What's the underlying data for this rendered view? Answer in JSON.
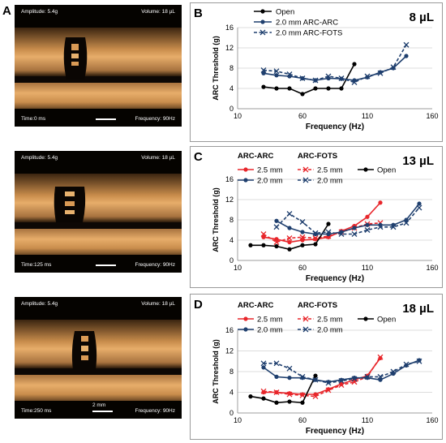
{
  "panel_a": {
    "letter": "A",
    "frames": [
      {
        "amplitude": "Amplitude: 5.4g",
        "volume": "Volume: 18 µL",
        "time": "Time:0    ms",
        "frequency": "Frequency: 90Hz",
        "scale_label": ""
      },
      {
        "amplitude": "Amplitude: 5.4g",
        "volume": "Volume: 18 µL",
        "time": "Time:125  ms",
        "frequency": "Frequency: 90Hz",
        "scale_label": ""
      },
      {
        "amplitude": "Amplitude: 5.4g",
        "volume": "Volume: 18 µL",
        "time": "Time:250  ms",
        "frequency": "Frequency: 90Hz",
        "scale_label": "2 mm"
      }
    ]
  },
  "colors": {
    "open": "#000000",
    "arc_2mm": "#1f3f6e",
    "arc_25mm": "#e8262b",
    "grid": "#d0d0d0"
  },
  "chart_data": [
    {
      "letter": "B",
      "type": "line",
      "title": "8 µL",
      "xlabel": "Frequency (Hz)",
      "ylabel": "ARC Threshold (g)",
      "xlim": [
        10,
        160
      ],
      "ylim": [
        0,
        16
      ],
      "xticks": [
        10,
        60,
        110,
        160
      ],
      "yticks": [
        0,
        4,
        8,
        12,
        16
      ],
      "legend": {
        "entries": [
          "Open",
          "2.0 mm ARC-ARC",
          "2.0 mm ARC-FOTS"
        ],
        "group_headers": []
      },
      "series": [
        {
          "name": "Open",
          "color": "#000000",
          "dash": false,
          "marker": "circle",
          "x": [
            30,
            40,
            50,
            60,
            70,
            80,
            90,
            100
          ],
          "y": [
            4.3,
            4.0,
            4.0,
            2.9,
            4.0,
            4.0,
            4.0,
            8.8
          ]
        },
        {
          "name": "2.0 mm ARC-ARC",
          "color": "#1f3f6e",
          "dash": false,
          "marker": "circle",
          "x": [
            30,
            40,
            50,
            60,
            70,
            80,
            90,
            100,
            110,
            120,
            130,
            140
          ],
          "y": [
            7.0,
            6.6,
            6.4,
            6.0,
            5.6,
            6.0,
            5.9,
            5.6,
            6.2,
            7.2,
            8.0,
            10.4
          ]
        },
        {
          "name": "2.0 mm ARC-FOTS",
          "color": "#1f3f6e",
          "dash": true,
          "marker": "x",
          "x": [
            30,
            40,
            50,
            60,
            70,
            80,
            90,
            100,
            110,
            120,
            130,
            140
          ],
          "y": [
            7.6,
            7.4,
            6.8,
            6.0,
            5.6,
            6.4,
            6.0,
            5.2,
            6.4,
            7.0,
            8.2,
            12.6
          ]
        }
      ]
    },
    {
      "letter": "C",
      "type": "line",
      "title": "13 µL",
      "xlabel": "Frequency (Hz)",
      "ylabel": "ARC Threshold (g)",
      "xlim": [
        10,
        160
      ],
      "ylim": [
        0,
        16
      ],
      "xticks": [
        10,
        60,
        110,
        160
      ],
      "yticks": [
        0,
        4,
        8,
        12,
        16
      ],
      "legend": {
        "group_headers": [
          "ARC-ARC",
          "ARC-FOTS"
        ],
        "entries": [
          "2.5 mm",
          "2.5 mm",
          "Open",
          "2.0 mm",
          "2.0 mm"
        ]
      },
      "series": [
        {
          "name": "2.5 mm ARC-ARC",
          "color": "#e8262b",
          "dash": false,
          "marker": "circle",
          "x": [
            30,
            40,
            50,
            60,
            70,
            80,
            90,
            100,
            110,
            120
          ],
          "y": [
            4.6,
            4.2,
            3.6,
            4.0,
            4.2,
            4.6,
            5.8,
            6.8,
            8.6,
            11.4
          ]
        },
        {
          "name": "2.5 mm ARC-FOTS",
          "color": "#e8262b",
          "dash": true,
          "marker": "x",
          "x": [
            30,
            40,
            50,
            60,
            70,
            80,
            90,
            100,
            110,
            120
          ],
          "y": [
            5.2,
            3.6,
            4.4,
            4.6,
            4.4,
            4.8,
            5.6,
            6.4,
            7.2,
            7.4
          ]
        },
        {
          "name": "Open",
          "color": "#000000",
          "dash": false,
          "marker": "circle",
          "x": [
            20,
            30,
            40,
            50,
            60,
            70,
            80
          ],
          "y": [
            3.0,
            3.0,
            2.8,
            2.2,
            3.0,
            3.2,
            7.2
          ]
        },
        {
          "name": "2.0 mm ARC-ARC",
          "color": "#1f3f6e",
          "dash": false,
          "marker": "circle",
          "x": [
            40,
            50,
            60,
            70,
            80,
            90,
            100,
            110,
            120,
            130,
            140,
            150
          ],
          "y": [
            7.8,
            6.4,
            5.6,
            5.2,
            5.2,
            5.6,
            6.4,
            7.0,
            7.0,
            7.0,
            8.0,
            11.2
          ]
        },
        {
          "name": "2.0 mm ARC-FOTS",
          "color": "#1f3f6e",
          "dash": true,
          "marker": "x",
          "x": [
            40,
            50,
            60,
            70,
            80,
            90,
            100,
            110,
            120,
            130,
            140,
            150
          ],
          "y": [
            6.6,
            9.2,
            7.6,
            5.4,
            5.6,
            5.2,
            5.2,
            6.0,
            6.6,
            6.6,
            7.4,
            10.4
          ]
        }
      ]
    },
    {
      "letter": "D",
      "type": "line",
      "title": "18 µL",
      "xlabel": "Frequency (Hz)",
      "ylabel": "ARC Threshold (g)",
      "xlim": [
        10,
        160
      ],
      "ylim": [
        0,
        16
      ],
      "xticks": [
        10,
        60,
        110,
        160
      ],
      "yticks": [
        0,
        4,
        8,
        12,
        16
      ],
      "legend": {
        "group_headers": [
          "ARC-ARC",
          "ARC-FOTS"
        ],
        "entries": [
          "2.5 mm",
          "2.5 mm",
          "Open",
          "2.0 mm",
          "2.0 mm"
        ]
      },
      "series": [
        {
          "name": "2.5 mm ARC-ARC",
          "color": "#e8262b",
          "dash": false,
          "marker": "circle",
          "x": [
            30,
            40,
            50,
            60,
            70,
            80,
            90,
            100,
            110,
            120
          ],
          "y": [
            4.0,
            4.0,
            3.8,
            3.6,
            3.6,
            4.6,
            5.6,
            6.4,
            7.2,
            10.6
          ]
        },
        {
          "name": "2.5 mm ARC-FOTS",
          "color": "#e8262b",
          "dash": true,
          "marker": "x",
          "x": [
            30,
            40,
            50,
            60,
            70,
            80,
            90,
            100,
            110,
            120
          ],
          "y": [
            4.2,
            4.0,
            3.6,
            3.4,
            3.2,
            4.4,
            5.4,
            6.0,
            7.0,
            10.8
          ]
        },
        {
          "name": "Open",
          "color": "#000000",
          "dash": false,
          "marker": "circle",
          "x": [
            20,
            30,
            40,
            50,
            60,
            70
          ],
          "y": [
            3.2,
            2.8,
            2.0,
            2.2,
            2.0,
            7.2
          ]
        },
        {
          "name": "2.0 mm ARC-ARC",
          "color": "#1f3f6e",
          "dash": false,
          "marker": "circle",
          "x": [
            30,
            40,
            50,
            60,
            70,
            80,
            90,
            100,
            110,
            120,
            130,
            140,
            150
          ],
          "y": [
            8.8,
            7.0,
            6.8,
            6.8,
            6.4,
            6.0,
            6.4,
            6.8,
            6.8,
            6.4,
            7.6,
            9.2,
            10.2
          ]
        },
        {
          "name": "2.0 mm ARC-FOTS",
          "color": "#1f3f6e",
          "dash": true,
          "marker": "x",
          "x": [
            30,
            40,
            50,
            60,
            70,
            80,
            90,
            100,
            110,
            120,
            130,
            140,
            150
          ],
          "y": [
            9.6,
            9.6,
            8.6,
            7.0,
            6.4,
            5.8,
            6.2,
            6.6,
            7.0,
            7.0,
            8.0,
            9.4,
            10.0
          ]
        }
      ]
    }
  ]
}
